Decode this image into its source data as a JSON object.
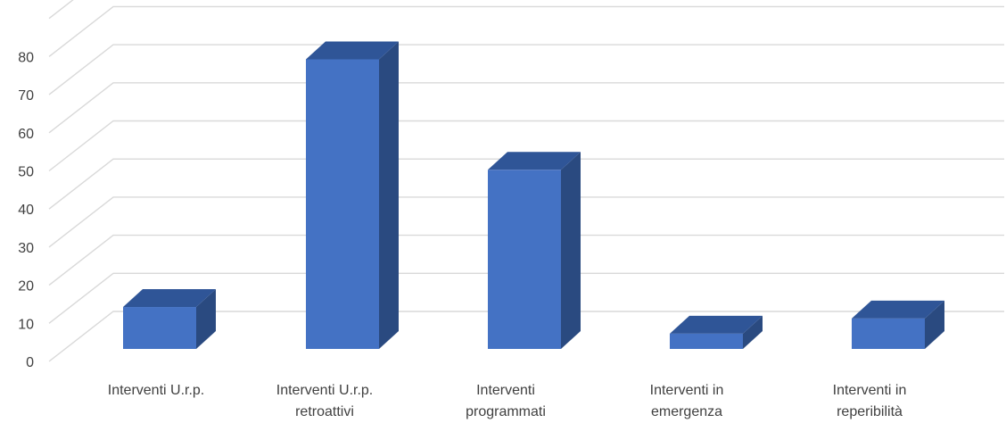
{
  "chart_data": {
    "type": "bar",
    "style": "3d-column",
    "categories": [
      [
        "Interventi U.r.p."
      ],
      [
        "Interventi U.r.p.",
        "retroattivi"
      ],
      [
        "Interventi",
        "programmati"
      ],
      [
        "Interventi in",
        "emergenza"
      ],
      [
        "Interventi in",
        "reperibilità"
      ]
    ],
    "values": [
      11,
      76,
      47,
      4,
      8
    ],
    "title": "",
    "xlabel": "",
    "ylabel": "",
    "ylim": [
      0,
      90
    ],
    "yticks": [
      0,
      10,
      20,
      30,
      40,
      50,
      60,
      70,
      80
    ],
    "grid": true,
    "legend": "none",
    "colors": {
      "front": "#4472c4",
      "top": "#2f5597",
      "side": "#2a4a80",
      "grid": "#d9d9d9",
      "text": "#404040"
    }
  }
}
